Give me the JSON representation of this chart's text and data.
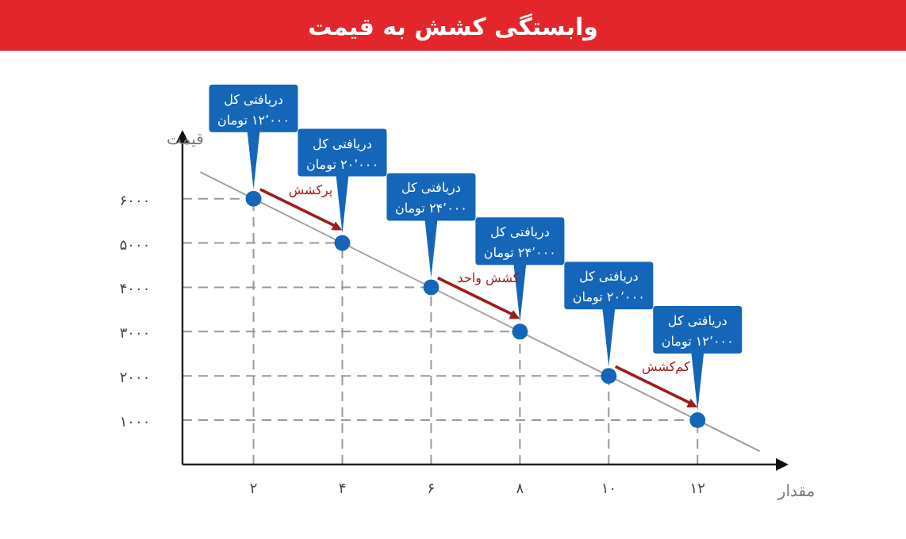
{
  "chart_data": {
    "type": "line",
    "title": "وابستگی کشش به قیمت",
    "xlabel": "مقدار",
    "ylabel": "قیمت",
    "xlim": [
      0.4,
      13.8
    ],
    "ylim": [
      0,
      7300
    ],
    "ref_lines": [
      {
        "axis": "y",
        "value": 6000,
        "line_style": "dashed",
        "color": "#999999"
      },
      {
        "axis": "y",
        "value": 5000,
        "line_style": "dashed",
        "color": "#999999"
      },
      {
        "axis": "y",
        "value": 4000,
        "line_style": "dashed",
        "color": "#999999"
      },
      {
        "axis": "y",
        "value": 3000,
        "line_style": "dashed",
        "color": "#999999"
      },
      {
        "axis": "y",
        "value": 2000,
        "line_style": "dashed",
        "color": "#999999"
      },
      {
        "axis": "y",
        "value": 1000,
        "line_style": "dashed",
        "color": "#999999"
      },
      {
        "axis": "x",
        "value": 2,
        "line_style": "dashed",
        "color": "#999999"
      },
      {
        "axis": "x",
        "value": 4,
        "line_style": "dashed",
        "color": "#999999"
      },
      {
        "axis": "x",
        "value": 6,
        "line_style": "dashed",
        "color": "#999999"
      },
      {
        "axis": "x",
        "value": 8,
        "line_style": "dashed",
        "color": "#999999"
      },
      {
        "axis": "x",
        "value": 10,
        "line_style": "dashed",
        "color": "#999999"
      },
      {
        "axis": "x",
        "value": 12,
        "line_style": "dashed",
        "color": "#999999"
      }
    ],
    "xticks": [
      {
        "value": 2,
        "label": "۲"
      },
      {
        "value": 4,
        "label": "۴"
      },
      {
        "value": 6,
        "label": "۶"
      },
      {
        "value": 8,
        "label": "۸"
      },
      {
        "value": 10,
        "label": "۱۰"
      },
      {
        "value": 12,
        "label": "۱۲"
      }
    ],
    "yticks": [
      {
        "value": 1000,
        "label": "۱۰۰۰"
      },
      {
        "value": 2000,
        "label": "۲۰۰۰"
      },
      {
        "value": 3000,
        "label": "۳۰۰۰"
      },
      {
        "value": 4000,
        "label": "۴۰۰۰"
      },
      {
        "value": 5000,
        "label": "۵۰۰۰"
      },
      {
        "value": 6000,
        "label": "۶۰۰۰"
      }
    ],
    "series": [
      {
        "color": "#a0a0a0",
        "x": [
          0.8,
          13.4
        ],
        "values": [
          6600,
          300
        ]
      },
      {
        "type": "scatter",
        "color": "#1565b8",
        "marker": "circle",
        "x": [
          2,
          4,
          6,
          8,
          10,
          12
        ],
        "values": [
          6000,
          5000,
          4000,
          3000,
          2000,
          1000
        ]
      }
    ],
    "annotations": [
      {
        "text": "دریافتی کل\n۱۲٬۰۰۰ تومان",
        "x": 2,
        "y": 6000
      },
      {
        "text": "دریافتی کل\n۲۰٬۰۰۰ تومان",
        "x": 4,
        "y": 5000
      },
      {
        "text": "دریافتی کل\n۲۴٬۰۰۰ تومان",
        "x": 6,
        "y": 4000
      },
      {
        "text": "دریافتی کل\n۲۴٬۰۰۰ تومان",
        "x": 8,
        "y": 3000
      },
      {
        "text": "دریافتی کل\n۲۰٬۰۰۰ تومان",
        "x": 10,
        "y": 2000
      },
      {
        "text": "دریافتی کل\n۱۲٬۰۰۰ تومان",
        "x": 12,
        "y": 1000
      },
      {
        "text": "پرکشش",
        "x": 3,
        "y": 5500
      },
      {
        "text": "کشش واحد",
        "x": 7,
        "y": 3500
      },
      {
        "text": "کم‌کشش",
        "x": 11,
        "y": 1500
      }
    ]
  }
}
